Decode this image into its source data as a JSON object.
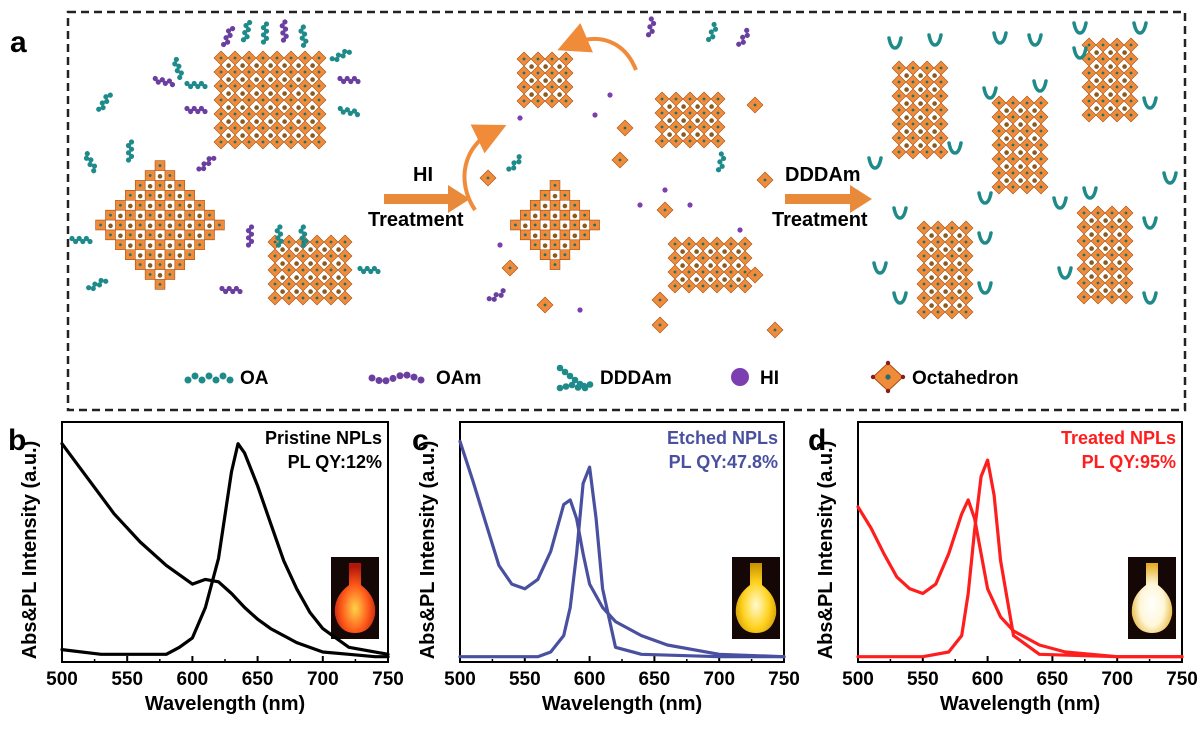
{
  "figure": {
    "panel_a": {
      "label": "a",
      "steps": [
        {
          "top": "HI",
          "bottom": "Treatment"
        },
        {
          "top": "DDDAm",
          "bottom": "Treatment"
        }
      ],
      "legend": [
        {
          "icon": "oa-ligand-icon",
          "label": "OA"
        },
        {
          "icon": "oam-ligand-icon",
          "label": "OAm"
        },
        {
          "icon": "dddam-ligand-icon",
          "label": "DDDAm"
        },
        {
          "icon": "hi-molecule-icon",
          "label": "HI"
        },
        {
          "icon": "octahedron-icon",
          "label": "Octahedron"
        }
      ],
      "colors": {
        "octahedron": "#f08b3a",
        "oa": "#1f8a8a",
        "oam": "#6a3fa0",
        "hi": "#7b3fb0"
      }
    }
  },
  "chart_data": [
    {
      "label": "b",
      "type": "line",
      "annotation": [
        "Pristine NPLs",
        "PL QY:12%"
      ],
      "annotation_color": "#000000",
      "line_color": "#000000",
      "xlabel": "Wavelength (nm)",
      "ylabel": "Abs&PL Intensity (a.u.)",
      "xlim": [
        500,
        750
      ],
      "ylim": [
        0,
        1
      ],
      "xticks": [
        "500",
        "550",
        "600",
        "650",
        "700",
        "750"
      ],
      "series": [
        {
          "x": [
            500,
            520,
            540,
            560,
            580,
            600,
            610,
            620,
            630,
            640,
            650,
            660,
            680,
            700,
            720,
            740,
            750
          ],
          "y": [
            0.92,
            0.77,
            0.62,
            0.5,
            0.4,
            0.32,
            0.34,
            0.33,
            0.28,
            0.22,
            0.17,
            0.13,
            0.07,
            0.03,
            0.02,
            0.01,
            0.01
          ]
        },
        {
          "x": [
            500,
            530,
            560,
            580,
            590,
            600,
            610,
            620,
            630,
            635,
            640,
            650,
            660,
            670,
            680,
            690,
            700,
            720,
            750
          ],
          "y": [
            0.04,
            0.02,
            0.02,
            0.02,
            0.05,
            0.09,
            0.22,
            0.43,
            0.8,
            0.92,
            0.88,
            0.74,
            0.58,
            0.42,
            0.3,
            0.2,
            0.13,
            0.05,
            0.02
          ]
        }
      ],
      "inset": "orange"
    },
    {
      "label": "c",
      "type": "line",
      "annotation": [
        "Etched NPLs",
        "PL QY:47.8%"
      ],
      "annotation_color": "#4a50a0",
      "line_color": "#4a50a0",
      "xlabel": "Wavelength (nm)",
      "ylabel": "Abs&PL Intensity (a.u.)",
      "xlim": [
        500,
        750
      ],
      "ylim": [
        0,
        1
      ],
      "xticks": [
        "500",
        "550",
        "600",
        "650",
        "700",
        "750"
      ],
      "series": [
        {
          "x": [
            500,
            510,
            520,
            530,
            540,
            550,
            560,
            570,
            575,
            580,
            585,
            590,
            595,
            600,
            610,
            620,
            640,
            660,
            700,
            750
          ],
          "y": [
            0.93,
            0.76,
            0.58,
            0.4,
            0.32,
            0.3,
            0.34,
            0.46,
            0.56,
            0.66,
            0.68,
            0.6,
            0.45,
            0.32,
            0.22,
            0.16,
            0.1,
            0.06,
            0.02,
            0.01
          ]
        },
        {
          "x": [
            500,
            540,
            560,
            570,
            580,
            585,
            590,
            595,
            600,
            605,
            610,
            620,
            640,
            700,
            750
          ],
          "y": [
            0.01,
            0.01,
            0.01,
            0.03,
            0.1,
            0.22,
            0.45,
            0.75,
            0.82,
            0.6,
            0.3,
            0.05,
            0.02,
            0.01,
            0.01
          ]
        }
      ],
      "inset": "yellow"
    },
    {
      "label": "d",
      "type": "line",
      "annotation": [
        "Treated NPLs",
        "PL QY:95%"
      ],
      "annotation_color": "#ff1e1e",
      "line_color": "#ff1e1e",
      "xlabel": "Wavelength (nm)",
      "ylabel": "Abs&PL Intensity (a.u.)",
      "xlim": [
        500,
        750
      ],
      "ylim": [
        0,
        1
      ],
      "xticks": [
        "500",
        "550",
        "600",
        "650",
        "700",
        "750"
      ],
      "series": [
        {
          "x": [
            500,
            510,
            520,
            530,
            540,
            550,
            560,
            570,
            580,
            585,
            590,
            595,
            600,
            610,
            620,
            640,
            660,
            700,
            750
          ],
          "y": [
            0.65,
            0.56,
            0.45,
            0.35,
            0.3,
            0.28,
            0.32,
            0.45,
            0.62,
            0.68,
            0.6,
            0.45,
            0.3,
            0.18,
            0.12,
            0.06,
            0.03,
            0.01,
            0.01
          ]
        },
        {
          "x": [
            500,
            550,
            570,
            580,
            585,
            590,
            595,
            600,
            605,
            610,
            620,
            640,
            700,
            750
          ],
          "y": [
            0.01,
            0.01,
            0.03,
            0.1,
            0.28,
            0.55,
            0.78,
            0.85,
            0.7,
            0.42,
            0.1,
            0.02,
            0.01,
            0.01
          ]
        }
      ],
      "inset": "white"
    }
  ]
}
